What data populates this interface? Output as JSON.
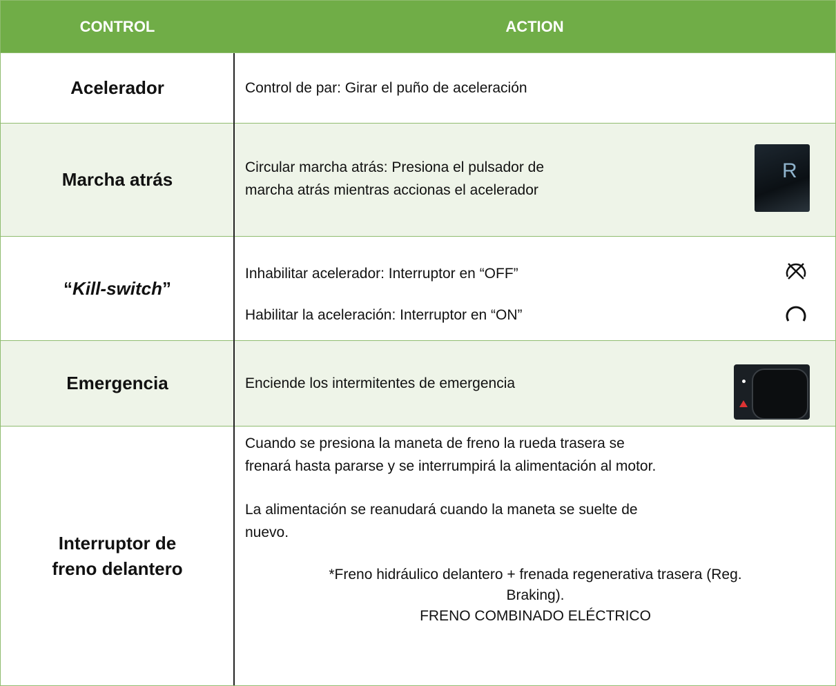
{
  "header": {
    "control": "CONTROL",
    "action": "ACTION"
  },
  "rows": [
    {
      "control": "Acelerador",
      "action": "Control de par: Girar el puño de aceleración"
    },
    {
      "control": "Marcha atrás",
      "action": [
        "Circular marcha atrás: Presiona el pulsador de",
        "marcha atrás mientras accionas el acelerador"
      ],
      "icon_text": "R"
    },
    {
      "control": {
        "open": "“",
        "em": "Kill-switch",
        "close": "”"
      },
      "action": [
        "Inhabilitar acelerador: Interruptor en “OFF”",
        "Habilitar la aceleración: Interruptor en “ON”"
      ]
    },
    {
      "control": "Emergencia",
      "action": "Enciende los intermitentes de emergencia"
    },
    {
      "control": [
        "Interruptor de",
        "freno delantero"
      ],
      "action": [
        [
          "Cuando se presiona la maneta de freno la rueda trasera se",
          "frenará hasta pararse y se interrumpirá la alimentación al motor."
        ],
        [
          "La alimentación se reanudará cuando la maneta se suelte de",
          "nuevo."
        ],
        [
          "*Freno hidráulico delantero + frenada regenerativa trasera (Reg.",
          "Braking).",
          "FRENO COMBINADO ELÉCTRICO"
        ]
      ]
    }
  ]
}
